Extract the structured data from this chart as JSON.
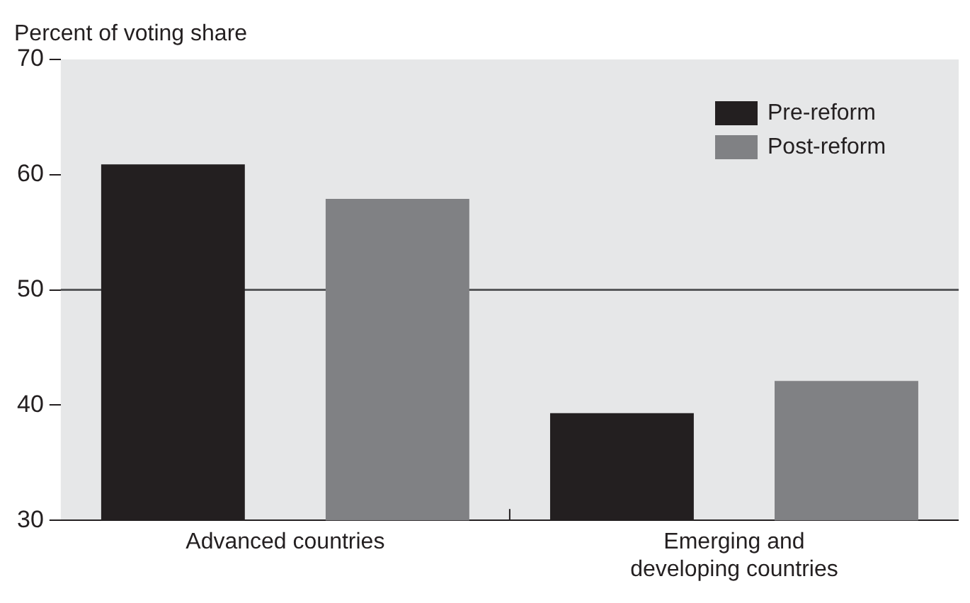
{
  "chart_data": {
    "type": "bar",
    "ylabel": "Percent of voting share",
    "categories": [
      "Advanced countries",
      "Emerging and developing countries"
    ],
    "series": [
      {
        "name": "Pre-reform",
        "color": "#231f20",
        "values": [
          60.9,
          39.3
        ]
      },
      {
        "name": "Post-reform",
        "color": "#808184",
        "values": [
          57.9,
          42.1
        ]
      }
    ],
    "ylim": [
      30,
      70
    ],
    "yticks": [
      30,
      40,
      50,
      60,
      70
    ],
    "grid": false,
    "legend": "top right",
    "ref_lines": [
      {
        "axis": "y",
        "value": 50,
        "color": "#58595b"
      }
    ]
  }
}
